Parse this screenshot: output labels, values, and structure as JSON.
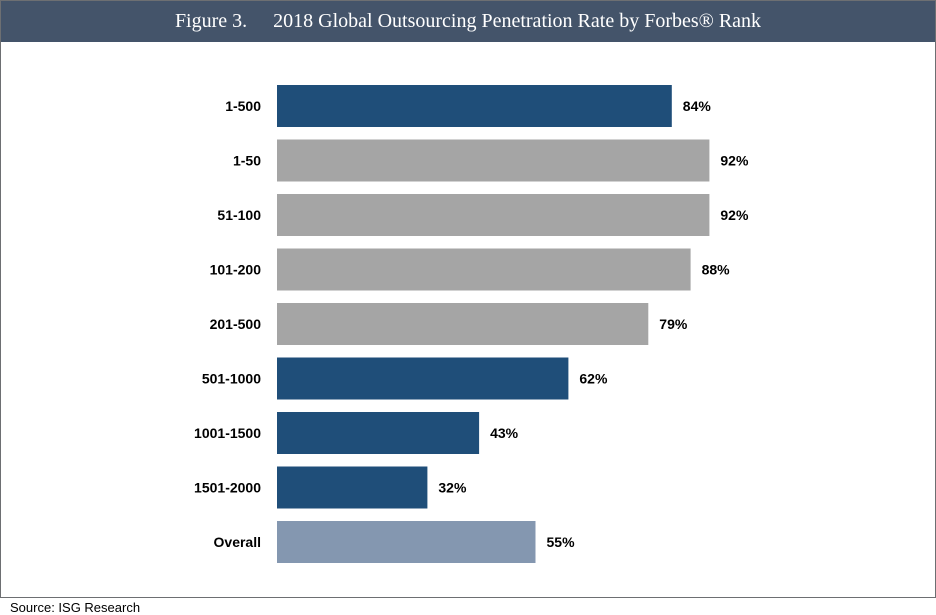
{
  "figure_label": "Figure 3.",
  "source": "Source: ISG Research",
  "chart_data": {
    "type": "bar",
    "orientation": "horizontal",
    "title": "2018 Global Outsourcing Penetration Rate by Forbes® Rank",
    "xlabel": "",
    "ylabel": "",
    "xlim": [
      0,
      100
    ],
    "grid": false,
    "legend": "none",
    "categories": [
      "1-500",
      "1-50",
      "51-100",
      "101-200",
      "201-500",
      "501-1000",
      "1001-1500",
      "1501-2000",
      "Overall"
    ],
    "values": [
      84,
      92,
      92,
      88,
      79,
      62,
      43,
      32,
      55
    ],
    "value_labels": [
      "84%",
      "92%",
      "92%",
      "88%",
      "79%",
      "62%",
      "43%",
      "32%",
      "55%"
    ],
    "bar_colors": [
      "#1f4e79",
      "#a5a5a5",
      "#a5a5a5",
      "#a5a5a5",
      "#a5a5a5",
      "#1f4e79",
      "#1f4e79",
      "#1f4e79",
      "#8497b0"
    ]
  }
}
